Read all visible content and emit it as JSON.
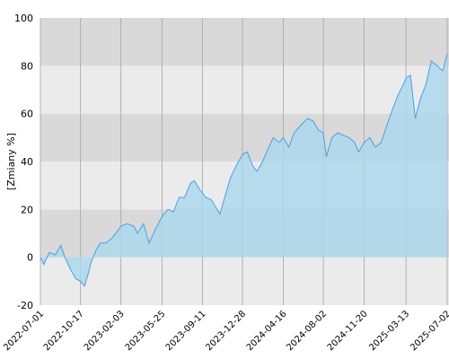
{
  "chart_data": {
    "type": "area",
    "ylabel": "[Zmiany %]",
    "x": [
      "2022-07-01",
      "2022-07-10",
      "2022-07-25",
      "2022-08-10",
      "2022-08-25",
      "2022-09-05",
      "2022-09-20",
      "2022-10-05",
      "2022-10-17",
      "2022-10-28",
      "2022-11-05",
      "2022-11-15",
      "2022-11-28",
      "2022-12-10",
      "2022-12-25",
      "2023-01-10",
      "2023-01-25",
      "2023-02-03",
      "2023-02-20",
      "2023-03-10",
      "2023-03-20",
      "2023-04-05",
      "2023-04-20",
      "2023-05-05",
      "2023-05-25",
      "2023-06-10",
      "2023-06-25",
      "2023-07-10",
      "2023-07-25",
      "2023-08-10",
      "2023-08-20",
      "2023-09-05",
      "2023-09-20",
      "2023-10-05",
      "2023-10-20",
      "2023-10-28",
      "2023-11-10",
      "2023-11-25",
      "2023-12-10",
      "2023-12-28",
      "2024-01-10",
      "2024-01-25",
      "2024-02-05",
      "2024-02-20",
      "2024-03-05",
      "2024-03-20",
      "2024-04-05",
      "2024-04-16",
      "2024-05-01",
      "2024-05-15",
      "2024-06-01",
      "2024-06-20",
      "2024-07-05",
      "2024-07-20",
      "2024-08-02",
      "2024-08-10",
      "2024-08-25",
      "2024-09-10",
      "2024-09-25",
      "2024-10-10",
      "2024-10-25",
      "2024-11-05",
      "2024-11-20",
      "2024-12-05",
      "2024-12-20",
      "2025-01-05",
      "2025-01-20",
      "2025-02-05",
      "2025-02-20",
      "2025-03-05",
      "2025-03-13",
      "2025-03-25",
      "2025-04-07",
      "2025-04-20",
      "2025-05-05",
      "2025-05-20",
      "2025-06-05",
      "2025-06-20",
      "2025-07-02"
    ],
    "values": [
      0,
      -3,
      2,
      1,
      5,
      0,
      -5,
      -9,
      -10,
      -12,
      -8,
      -2,
      3,
      6,
      6,
      8,
      11,
      13,
      14,
      13,
      10,
      14,
      6,
      11,
      17,
      20,
      19,
      25,
      25,
      31,
      32,
      28,
      25,
      24,
      20,
      18,
      25,
      33,
      38,
      43,
      44,
      38,
      36,
      40,
      45,
      50,
      48,
      50,
      46,
      52,
      55,
      58,
      57,
      53,
      52,
      42,
      50,
      52,
      51,
      50,
      48,
      44,
      48,
      50,
      46,
      48,
      55,
      62,
      68,
      72,
      75,
      76,
      58,
      66,
      72,
      82,
      80,
      78,
      85
    ],
    "color": "#4a9fe8",
    "fill": "#a9d7ec",
    "xlim": [
      "2022-07-01",
      "2025-07-02"
    ],
    "xticks": [
      "2022-07-01",
      "2022-10-17",
      "2023-02-03",
      "2023-05-25",
      "2023-09-11",
      "2023-12-28",
      "2024-04-16",
      "2024-08-02",
      "2024-11-20",
      "2025-03-13",
      "2025-07-02"
    ],
    "ylim": [
      -20,
      100
    ],
    "yticks": [
      -20,
      0,
      20,
      40,
      60,
      80,
      100
    ],
    "grid": true
  }
}
